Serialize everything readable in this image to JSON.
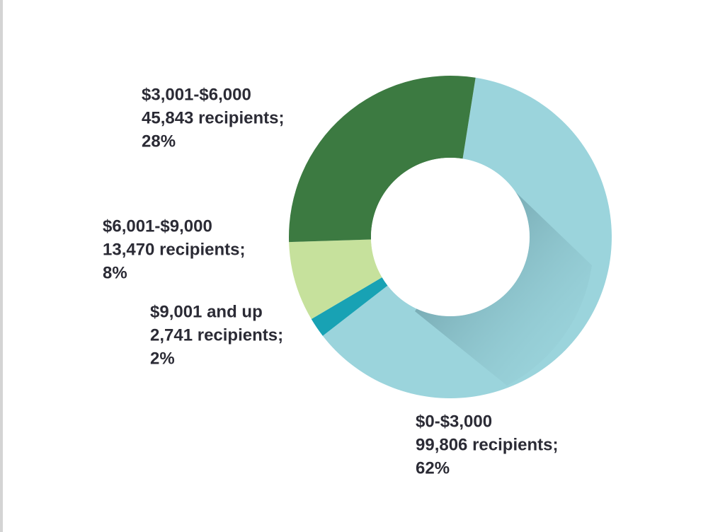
{
  "chart_data": {
    "type": "pie",
    "categories": [
      "$0-$3,000",
      "$9,001 and up",
      "$6,001-$9,000",
      "$3,001-$6,000"
    ],
    "recipient_labels": [
      "99,806 recipients;",
      "2,741 recipients;",
      "13,470 recipients;",
      "45,843 recipients;"
    ],
    "values": [
      62,
      2,
      8,
      28
    ],
    "value_labels": [
      "62%",
      "2%",
      "8%",
      "28%"
    ],
    "colors": [
      "#9bd4dc",
      "#18a2b4",
      "#c6e19c",
      "#3c7a41"
    ],
    "donut": true
  }
}
